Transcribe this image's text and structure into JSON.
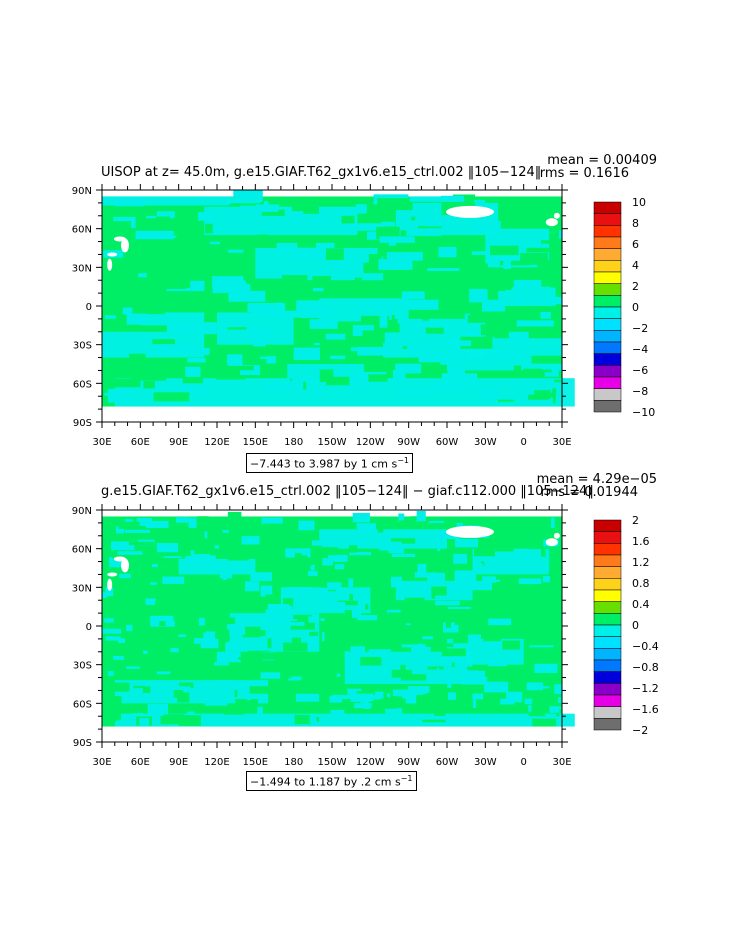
{
  "colors": {
    "ocean_green": "#00ee66",
    "ocean_cyan": "#00f0e8",
    "land": "#ffffff",
    "frame": "#000000"
  },
  "chart_data": [
    {
      "type": "heatmap",
      "title": "UISOP at z=  45.0m, g.e15.GIAF.T62_gx1v6.e15_ctrl.002  ‖105−124‖",
      "stat_mean": "mean = 0.00409",
      "stat_rms": "rms = 0.1616",
      "x_ticks": [
        "30E",
        "60E",
        "90E",
        "120E",
        "150E",
        "180",
        "150W",
        "120W",
        "90W",
        "60W",
        "30W",
        "0",
        "30E"
      ],
      "y_ticks": [
        "90N",
        "60N",
        "30N",
        "0",
        "30S",
        "60S",
        "90S"
      ],
      "xlim": [
        30,
        390
      ],
      "ylim": [
        -90,
        90
      ],
      "range_text": "−7.443 to 3.987 by 1 cm s",
      "range_sup": "−1",
      "colorbar": {
        "labels": [
          "10",
          "8",
          "6",
          "4",
          "2",
          "0",
          "−2",
          "−4",
          "−6",
          "−8",
          "−10"
        ],
        "colors": [
          "#c80000",
          "#e81010",
          "#ff3300",
          "#ff7a1a",
          "#ffaa33",
          "#ffd21a",
          "#ffff00",
          "#66e000",
          "#00ee66",
          "#00f0e8",
          "#00e0ff",
          "#00b4ff",
          "#0078ff",
          "#0000dc",
          "#8a00c8",
          "#e600e6",
          "#c8c8c8",
          "#6e6e6e"
        ]
      }
    },
    {
      "type": "heatmap",
      "title": "g.e15.GIAF.T62_gx1v6.e15_ctrl.002  ‖105−124‖  −  giaf.c112.000  ‖105−124‖",
      "stat_mean": "mean = 4.29e−05",
      "stat_rms": "rms = 0.01944",
      "x_ticks": [
        "30E",
        "60E",
        "90E",
        "120E",
        "150E",
        "180",
        "150W",
        "120W",
        "90W",
        "60W",
        "30W",
        "0",
        "30E"
      ],
      "y_ticks": [
        "90N",
        "60N",
        "30N",
        "0",
        "30S",
        "60S",
        "90S"
      ],
      "xlim": [
        30,
        390
      ],
      "ylim": [
        -90,
        90
      ],
      "range_text": "−1.494 to 1.187 by .2 cm s",
      "range_sup": "−1",
      "colorbar": {
        "labels": [
          "2",
          "1.6",
          "1.2",
          "0.8",
          "0.4",
          "0",
          "−0.4",
          "−0.8",
          "−1.2",
          "−1.6",
          "−2"
        ],
        "colors": [
          "#c80000",
          "#e81010",
          "#ff3300",
          "#ff7a1a",
          "#ffaa33",
          "#ffd21a",
          "#ffff00",
          "#66e000",
          "#00ee66",
          "#00f0e8",
          "#00e0ff",
          "#00b4ff",
          "#0078ff",
          "#0000dc",
          "#8a00c8",
          "#e600e6",
          "#c8c8c8",
          "#6e6e6e"
        ]
      }
    }
  ]
}
